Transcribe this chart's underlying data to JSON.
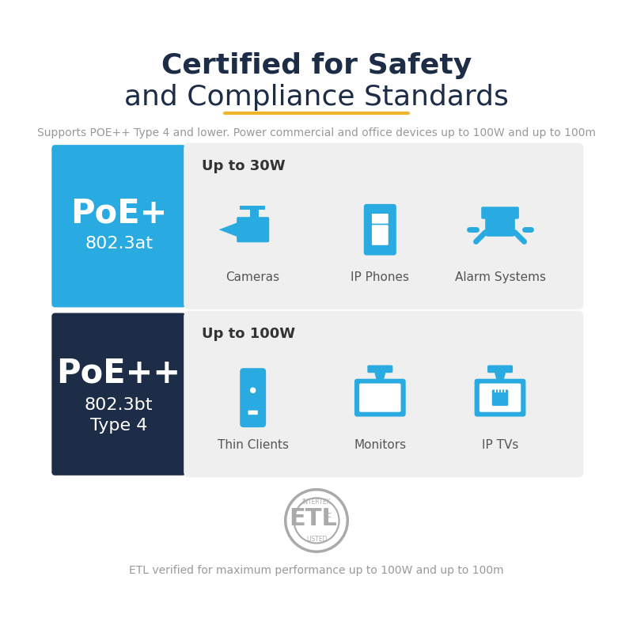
{
  "bg_color": "#ffffff",
  "title_line1": "Certified for Safety",
  "title_line2": "and Compliance Standards",
  "title_color": "#1e2d47",
  "title_fontsize": 26,
  "underline_color": "#f0b429",
  "subtitle": "Supports POE++ Type 4 and lower. Power commercial and office devices up to 100W and up to 100m",
  "subtitle_color": "#999999",
  "subtitle_fontsize": 10,
  "poe_plus_bg": "#29abe2",
  "poe_plus_text": "PoE+",
  "poe_plus_sub": "802.3at",
  "poe_plus_text_color": "#ffffff",
  "poe_plus_sub_color": "#ffffff",
  "poe_plusplus_bg": "#1e2d47",
  "poe_plusplus_text": "PoE++",
  "poe_plusplus_sub1": "802.3bt",
  "poe_plusplus_sub2": "Type 4",
  "poe_plusplus_text_color": "#ffffff",
  "poe_plusplus_sub_color": "#ffffff",
  "card_bg": "#efefef",
  "power_label_color": "#333333",
  "power_label_fontsize": 13,
  "icon_color": "#29abe2",
  "device_label_fontsize": 11,
  "device_label_color": "#555555",
  "row1_power": "Up to 30W",
  "row1_devices": [
    "Cameras",
    "IP Phones",
    "Alarm Systems"
  ],
  "row2_power": "Up to 100W",
  "row2_devices": [
    "Thin Clients",
    "Monitors",
    "IP TVs"
  ],
  "etl_text": "ETL verified for maximum performance up to 100W and up to 100m",
  "etl_text_color": "#999999",
  "etl_fontsize": 10,
  "etl_badge_color": "#aaaaaa"
}
